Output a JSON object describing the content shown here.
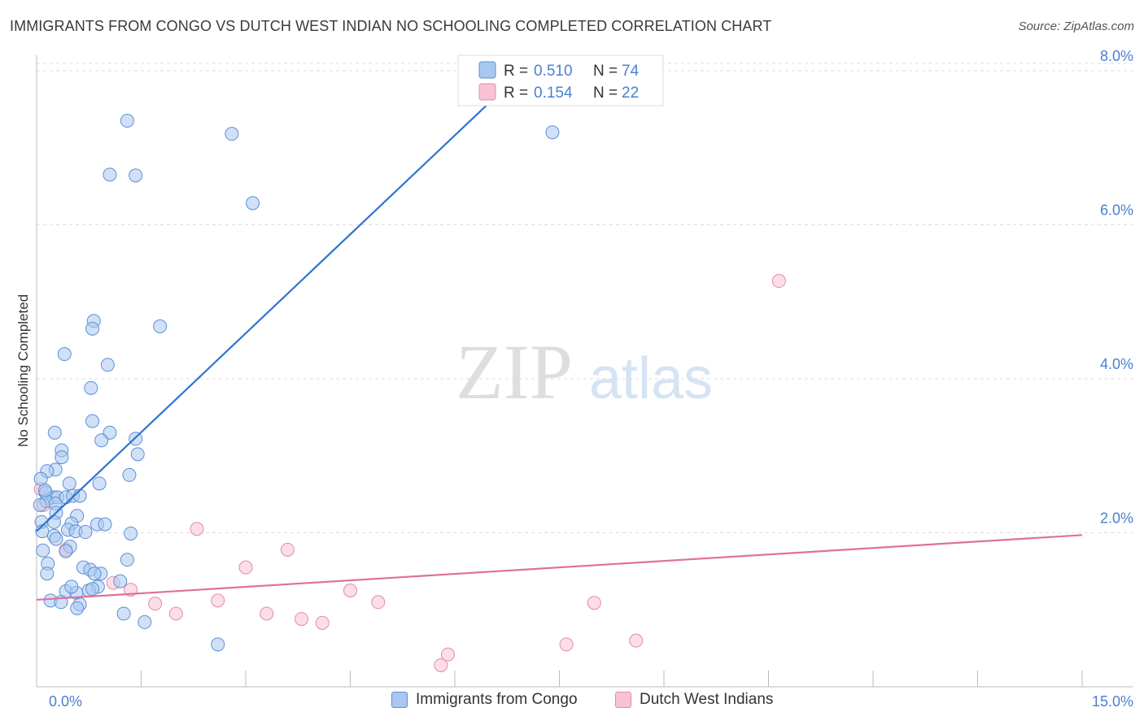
{
  "header": {
    "title": "IMMIGRANTS FROM CONGO VS DUTCH WEST INDIAN NO SCHOOLING COMPLETED CORRELATION CHART",
    "source": "Source: ZipAtlas.com"
  },
  "watermark": {
    "zip": "ZIP",
    "atlas": "atlas"
  },
  "colors": {
    "blue_fill": "#a9c8f0",
    "blue_stroke": "#5b8fd6",
    "blue_line": "#2f74d0",
    "pink_fill": "#f7c3d2",
    "pink_stroke": "#e58aa6",
    "pink_line": "#e0709a",
    "axis_label": "#4a7fd0",
    "grid": "#dddddd"
  },
  "chart_data": {
    "type": "scatter",
    "title": "IMMIGRANTS FROM CONGO VS DUTCH WEST INDIAN NO SCHOOLING COMPLETED CORRELATION CHART",
    "xlabel": "",
    "ylabel": "No Schooling Completed",
    "xlim": [
      0,
      15
    ],
    "ylim": [
      0,
      8.2
    ],
    "x_tick_labels": [
      "0.0%",
      "15.0%"
    ],
    "y_ticks": [
      2,
      4,
      6,
      8
    ],
    "y_tick_labels": [
      "2.0%",
      "4.0%",
      "6.0%",
      "8.0%"
    ],
    "legend_position": "top-center",
    "legend": [
      {
        "swatch": "blue",
        "r_label": "R =",
        "r_value": "0.510",
        "n_label": "N =",
        "n_value": "74"
      },
      {
        "swatch": "pink",
        "r_label": "R =",
        "r_value": "0.154",
        "n_label": "N =",
        "n_value": "22"
      }
    ],
    "series": [
      {
        "name": "Immigrants from Congo",
        "color": "blue",
        "trend": {
          "x0": 0,
          "y0": 2.02,
          "x1": 7.05,
          "y1": 8.06
        },
        "points": [
          [
            1.3,
            7.35
          ],
          [
            2.8,
            7.18
          ],
          [
            7.4,
            7.2
          ],
          [
            1.05,
            6.65
          ],
          [
            1.42,
            6.64
          ],
          [
            3.1,
            6.28
          ],
          [
            0.82,
            4.75
          ],
          [
            0.8,
            4.65
          ],
          [
            1.77,
            4.68
          ],
          [
            0.4,
            4.32
          ],
          [
            1.02,
            4.18
          ],
          [
            0.78,
            3.88
          ],
          [
            0.8,
            3.45
          ],
          [
            0.26,
            3.3
          ],
          [
            1.05,
            3.3
          ],
          [
            1.42,
            3.22
          ],
          [
            0.93,
            3.2
          ],
          [
            0.36,
            3.07
          ],
          [
            1.45,
            3.02
          ],
          [
            0.36,
            2.98
          ],
          [
            0.27,
            2.82
          ],
          [
            0.15,
            2.8
          ],
          [
            1.33,
            2.75
          ],
          [
            0.06,
            2.7
          ],
          [
            0.47,
            2.64
          ],
          [
            0.9,
            2.64
          ],
          [
            0.13,
            2.52
          ],
          [
            0.24,
            2.46
          ],
          [
            0.3,
            2.46
          ],
          [
            0.42,
            2.46
          ],
          [
            0.52,
            2.48
          ],
          [
            0.62,
            2.48
          ],
          [
            0.14,
            2.41
          ],
          [
            0.05,
            2.36
          ],
          [
            0.27,
            2.38
          ],
          [
            0.28,
            2.26
          ],
          [
            0.58,
            2.22
          ],
          [
            0.07,
            2.14
          ],
          [
            0.25,
            2.14
          ],
          [
            0.5,
            2.12
          ],
          [
            0.87,
            2.11
          ],
          [
            0.98,
            2.11
          ],
          [
            0.08,
            2.02
          ],
          [
            0.45,
            2.04
          ],
          [
            0.56,
            2.02
          ],
          [
            0.7,
            2.01
          ],
          [
            0.25,
            1.96
          ],
          [
            0.28,
            1.92
          ],
          [
            1.35,
            1.99
          ],
          [
            0.48,
            1.82
          ],
          [
            0.09,
            1.77
          ],
          [
            0.42,
            1.76
          ],
          [
            0.16,
            1.6
          ],
          [
            1.3,
            1.65
          ],
          [
            0.67,
            1.55
          ],
          [
            0.77,
            1.52
          ],
          [
            0.92,
            1.47
          ],
          [
            0.15,
            1.47
          ],
          [
            0.83,
            1.47
          ],
          [
            1.2,
            1.37
          ],
          [
            0.88,
            1.3
          ],
          [
            0.42,
            1.24
          ],
          [
            0.57,
            1.22
          ],
          [
            0.75,
            1.25
          ],
          [
            0.8,
            1.27
          ],
          [
            0.2,
            1.12
          ],
          [
            0.62,
            1.07
          ],
          [
            0.58,
            1.02
          ],
          [
            1.25,
            0.95
          ],
          [
            1.55,
            0.84
          ],
          [
            2.6,
            0.55
          ],
          [
            0.35,
            1.1
          ],
          [
            0.12,
            2.55
          ],
          [
            0.5,
            1.3
          ]
        ]
      },
      {
        "name": "Dutch West Indians",
        "color": "pink",
        "trend": {
          "x0": 0,
          "y0": 1.13,
          "x1": 15,
          "y1": 1.97
        },
        "points": [
          [
            10.65,
            5.27
          ],
          [
            0.06,
            2.57
          ],
          [
            0.1,
            2.36
          ],
          [
            2.3,
            2.05
          ],
          [
            3.6,
            1.78
          ],
          [
            0.42,
            1.78
          ],
          [
            3.0,
            1.55
          ],
          [
            1.1,
            1.35
          ],
          [
            1.35,
            1.26
          ],
          [
            4.5,
            1.25
          ],
          [
            2.6,
            1.12
          ],
          [
            4.9,
            1.1
          ],
          [
            8.0,
            1.09
          ],
          [
            1.7,
            1.08
          ],
          [
            2.0,
            0.95
          ],
          [
            3.3,
            0.95
          ],
          [
            3.8,
            0.88
          ],
          [
            4.1,
            0.83
          ],
          [
            8.6,
            0.6
          ],
          [
            7.6,
            0.55
          ],
          [
            5.9,
            0.42
          ],
          [
            5.8,
            0.28
          ]
        ]
      }
    ]
  }
}
